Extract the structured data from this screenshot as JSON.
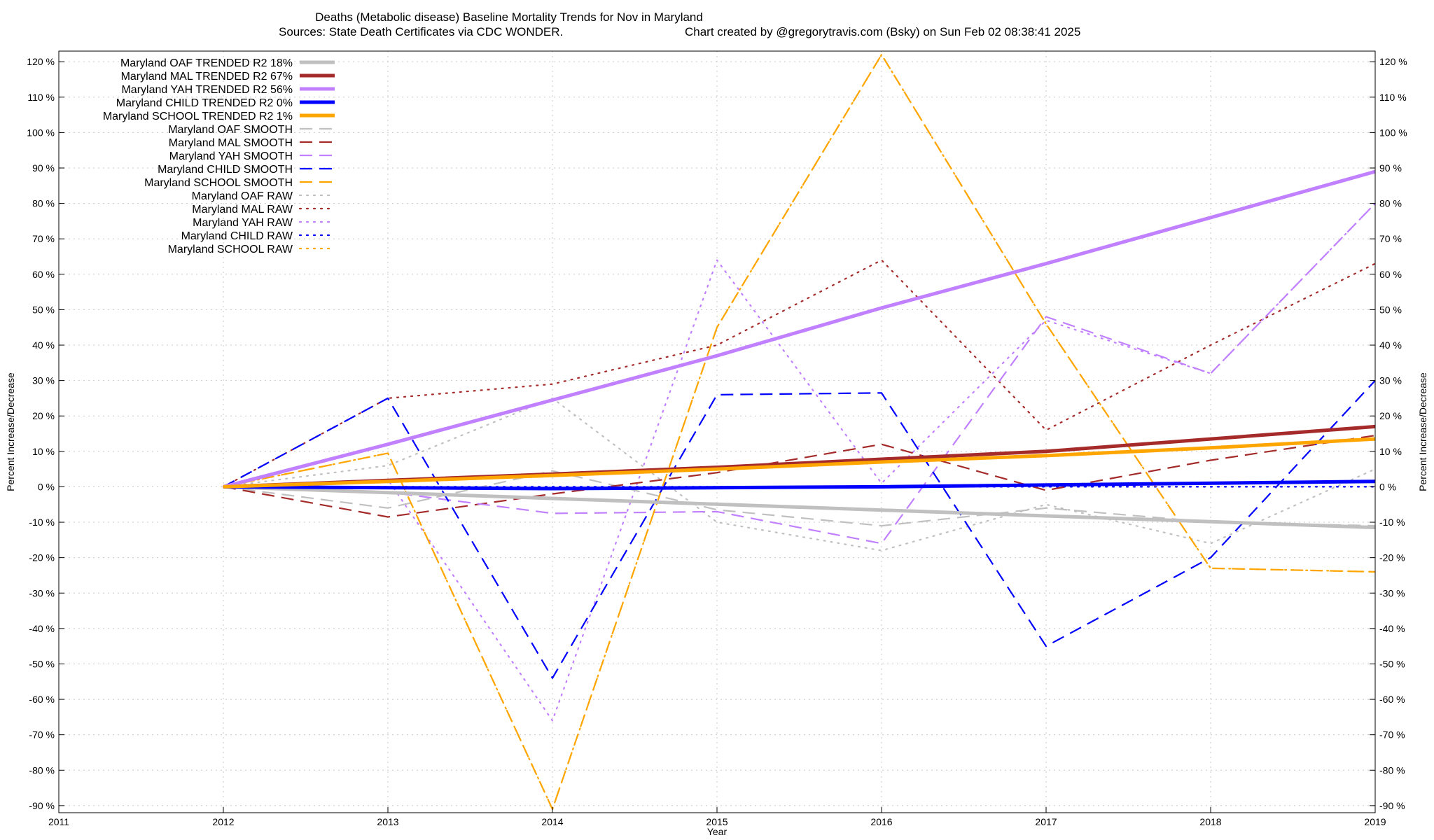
{
  "chart_data": {
    "type": "line",
    "title": "Deaths (Metabolic disease)  Baseline Mortality Trends for Nov in Maryland",
    "subtitle_left": "Sources: State Death Certificates via CDC WONDER.",
    "subtitle_right": "Chart created by @gregorytravis.com (Bsky) on Sun Feb 02 08:38:41 2025",
    "xlabel": "Year",
    "ylabel": "Percent Increase/Decrease",
    "y2label": "Percent Increase/Decrease",
    "xlim": [
      2011,
      2019
    ],
    "ylim": [
      -92,
      123
    ],
    "x_ticks": [
      "2011",
      "2012",
      "2013",
      "2014",
      "2015",
      "2016",
      "2017",
      "2018",
      "2019"
    ],
    "y_ticks": [
      {
        "value": 120,
        "label": "120 %"
      },
      {
        "value": 110,
        "label": "110 %"
      },
      {
        "value": 100,
        "label": "100 %"
      },
      {
        "value": 90,
        "label": "90 %"
      },
      {
        "value": 80,
        "label": "80 %"
      },
      {
        "value": 70,
        "label": "70 %"
      },
      {
        "value": 60,
        "label": "60 %"
      },
      {
        "value": 50,
        "label": "50 %"
      },
      {
        "value": 40,
        "label": "40 %"
      },
      {
        "value": 30,
        "label": "30 %"
      },
      {
        "value": 20,
        "label": "20 %"
      },
      {
        "value": 10,
        "label": "10 %"
      },
      {
        "value": 0,
        "label": "0 %"
      },
      {
        "value": -10,
        "label": "-10 %"
      },
      {
        "value": -20,
        "label": "-20 %"
      },
      {
        "value": -30,
        "label": "-30 %"
      },
      {
        "value": -40,
        "label": "-40 %"
      },
      {
        "value": -50,
        "label": "-50 %"
      },
      {
        "value": -60,
        "label": "-60 %"
      },
      {
        "value": -70,
        "label": "-70 %"
      },
      {
        "value": -80,
        "label": "-80 %"
      },
      {
        "value": -90,
        "label": "-90 %"
      }
    ],
    "grid": true,
    "legend_position": "top-left",
    "series": [
      {
        "name": "Maryland OAF TRENDED R2  18%",
        "color": "#c0c0c0",
        "style": "solid",
        "x": [
          2012,
          2019
        ],
        "y": [
          0,
          -11.5
        ]
      },
      {
        "name": "Maryland MAL TRENDED R2  67%",
        "color": "#a52a2a",
        "style": "solid",
        "x": [
          2012,
          2013,
          2014,
          2015,
          2016,
          2017,
          2018,
          2019
        ],
        "y": [
          0,
          1.8,
          3.6,
          5.5,
          7.8,
          10,
          13.5,
          17
        ]
      },
      {
        "name": "Maryland YAH TRENDED R2  56%",
        "color": "#c080ff",
        "style": "solid",
        "x": [
          2012,
          2013,
          2014,
          2015,
          2016,
          2017,
          2018,
          2019
        ],
        "y": [
          0,
          12,
          24.5,
          37,
          50.5,
          63,
          76,
          89
        ]
      },
      {
        "name": "Maryland CHILD TRENDED R2  0%",
        "color": "#0000ff",
        "style": "solid",
        "x": [
          2012,
          2014,
          2016,
          2019
        ],
        "y": [
          0,
          -0.5,
          0,
          1.5
        ]
      },
      {
        "name": "Maryland SCHOOL TRENDED R2  1%",
        "color": "#ffa500",
        "style": "solid",
        "x": [
          2012,
          2013,
          2014,
          2015,
          2016,
          2017,
          2018,
          2019
        ],
        "y": [
          0,
          1.5,
          3.2,
          5,
          7,
          8.8,
          11,
          13.5
        ]
      },
      {
        "name": "Maryland OAF SMOOTH",
        "color": "#c0c0c0",
        "style": "dashed",
        "x": [
          2012,
          2013,
          2014,
          2015,
          2016,
          2017,
          2018,
          2019
        ],
        "y": [
          0,
          -6,
          4.5,
          -6.5,
          -11,
          -6,
          -10,
          -11
        ]
      },
      {
        "name": "Maryland MAL SMOOTH",
        "color": "#a52a2a",
        "style": "dashed",
        "x": [
          2012,
          2013,
          2014,
          2015,
          2016,
          2017,
          2018,
          2019
        ],
        "y": [
          0,
          -8.5,
          -2,
          4,
          12,
          -1,
          7.5,
          14.5
        ]
      },
      {
        "name": "Maryland YAH SMOOTH",
        "color": "#c080ff",
        "style": "dashed",
        "x": [
          2012,
          2013,
          2014,
          2015,
          2016,
          2017,
          2018,
          2019
        ],
        "y": [
          0,
          -1.5,
          -7.5,
          -7,
          -16,
          48,
          32,
          80
        ]
      },
      {
        "name": "Maryland CHILD SMOOTH",
        "color": "#0000ff",
        "style": "dashed",
        "x": [
          2012,
          2013,
          2014,
          2015,
          2016,
          2017,
          2018,
          2019
        ],
        "y": [
          0,
          25,
          -54,
          26,
          26.5,
          -45,
          -20,
          30
        ]
      },
      {
        "name": "Maryland SCHOOL SMOOTH",
        "color": "#ffa500",
        "style": "dashed",
        "x": [
          2012,
          2013,
          2014,
          2015,
          2016,
          2017,
          2018,
          2019
        ],
        "y": [
          0,
          9.5,
          -91,
          45,
          122,
          46,
          -23,
          -24
        ]
      },
      {
        "name": "Maryland OAF RAW",
        "color": "#c0c0c0",
        "style": "dotted",
        "x": [
          2012,
          2013,
          2014,
          2015,
          2016,
          2017,
          2018,
          2019
        ],
        "y": [
          0,
          6,
          25,
          -10,
          -18,
          -5,
          -16,
          5
        ]
      },
      {
        "name": "Maryland MAL RAW",
        "color": "#a52a2a",
        "style": "dotted",
        "x": [
          2012,
          2013,
          2014,
          2015,
          2016,
          2017,
          2018,
          2019
        ],
        "y": [
          0,
          25,
          29,
          40,
          64,
          16,
          40,
          63
        ]
      },
      {
        "name": "Maryland YAH RAW",
        "color": "#c080ff",
        "style": "dotted",
        "x": [
          2012,
          2013,
          2014,
          2015,
          2016,
          2017,
          2018,
          2019
        ],
        "y": [
          0,
          2,
          -66,
          64,
          1,
          47,
          32,
          80
        ]
      },
      {
        "name": "Maryland CHILD RAW",
        "color": "#0000ff",
        "style": "dotted",
        "x": [
          2012,
          2013,
          2014,
          2015,
          2016,
          2017,
          2018,
          2019
        ],
        "y": [
          0,
          0,
          0,
          0,
          0,
          0,
          0,
          0
        ]
      },
      {
        "name": "Maryland SCHOOL RAW",
        "color": "#ffa500",
        "style": "dotted",
        "x": [
          2012,
          2013,
          2014,
          2015,
          2016,
          2017,
          2018,
          2019
        ],
        "y": [
          0,
          9.5,
          -91,
          45,
          122,
          46,
          -23,
          -24
        ]
      }
    ]
  }
}
